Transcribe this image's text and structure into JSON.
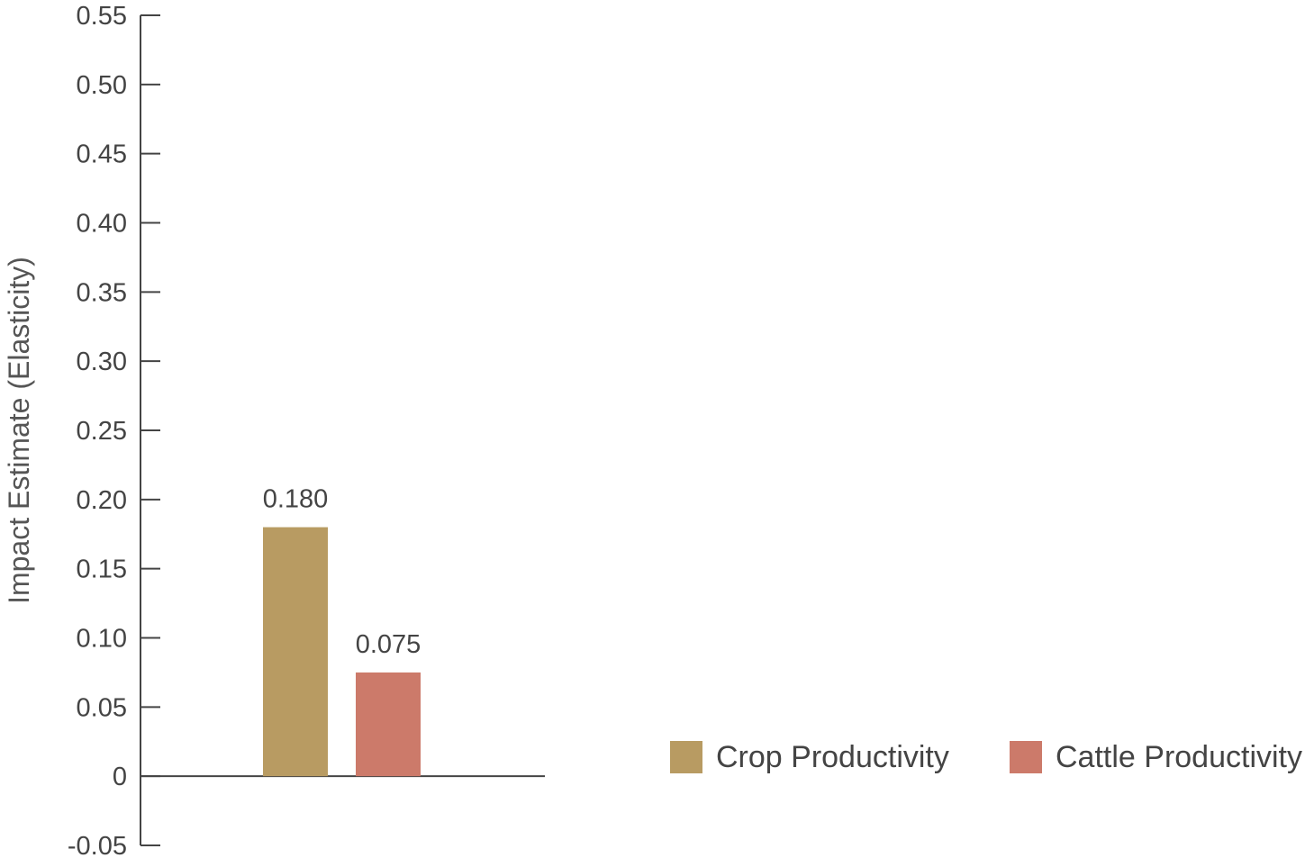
{
  "chart_data": {
    "type": "bar",
    "ylabel": "Impact Estimate (Elasticity)",
    "ylim": [
      -0.05,
      0.55
    ],
    "yticks": [
      "0.55",
      "0.50",
      "0.45",
      "0.40",
      "0.35",
      "0.30",
      "0.25",
      "0.20",
      "0.15",
      "0.10",
      "0.05",
      "0",
      "-0.05"
    ],
    "ytick_values": [
      0.55,
      0.5,
      0.45,
      0.4,
      0.35,
      0.3,
      0.25,
      0.2,
      0.15,
      0.1,
      0.05,
      0,
      -0.05
    ],
    "series": [
      {
        "name": "Crop Productivity",
        "value": 0.18,
        "label": "0.180",
        "color": "#b89b62"
      },
      {
        "name": "Cattle Productivity",
        "value": 0.075,
        "label": "0.075",
        "color": "#cc7a6a"
      }
    ],
    "grid": false,
    "legend_position": "bottom-right"
  }
}
